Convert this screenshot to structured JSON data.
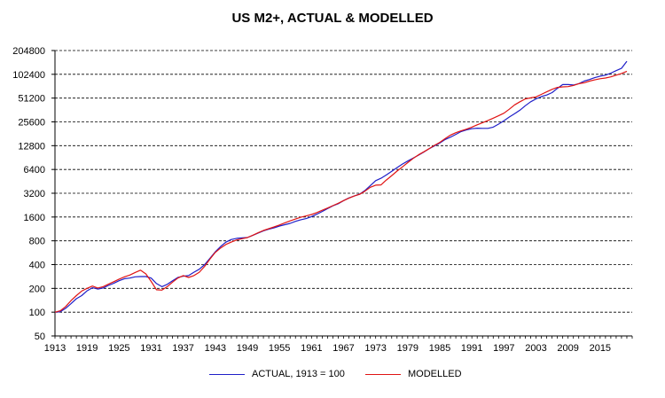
{
  "chart_data": {
    "type": "line",
    "title": "US M2+, ACTUAL & MODELLED",
    "xlabel": "",
    "ylabel": "",
    "y_scale": "log2",
    "ylim": [
      50,
      204800
    ],
    "xlim": [
      1913,
      2021
    ],
    "grid": "horizontal dashed",
    "legend_position": "bottom",
    "y_ticks": [
      {
        "value": 50,
        "label": "50"
      },
      {
        "value": 100,
        "label": "100"
      },
      {
        "value": 200,
        "label": "200"
      },
      {
        "value": 400,
        "label": "400"
      },
      {
        "value": 800,
        "label": "800"
      },
      {
        "value": 1600,
        "label": "1600"
      },
      {
        "value": 3200,
        "label": "3200"
      },
      {
        "value": 6400,
        "label": "6400"
      },
      {
        "value": 12800,
        "label": "12800"
      },
      {
        "value": 25600,
        "label": "25600"
      },
      {
        "value": 51200,
        "label": "51200"
      },
      {
        "value": 102400,
        "label": "102400"
      },
      {
        "value": 204800,
        "label": "204800"
      }
    ],
    "x_ticks": [
      {
        "value": 1913,
        "label": "1913"
      },
      {
        "value": 1919,
        "label": "1919"
      },
      {
        "value": 1925,
        "label": "1925"
      },
      {
        "value": 1931,
        "label": "1931"
      },
      {
        "value": 1937,
        "label": "1937"
      },
      {
        "value": 1943,
        "label": "1943"
      },
      {
        "value": 1949,
        "label": "1949"
      },
      {
        "value": 1955,
        "label": "1955"
      },
      {
        "value": 1961,
        "label": "1961"
      },
      {
        "value": 1967,
        "label": "1967"
      },
      {
        "value": 1973,
        "label": "1973"
      },
      {
        "value": 1979,
        "label": "1979"
      },
      {
        "value": 1985,
        "label": "1985"
      },
      {
        "value": 1991,
        "label": "1991"
      },
      {
        "value": 1997,
        "label": "1997"
      },
      {
        "value": 2003,
        "label": "2003"
      },
      {
        "value": 2009,
        "label": "2009"
      },
      {
        "value": 2015,
        "label": "2015"
      }
    ],
    "series": [
      {
        "name": "ACTUAL, 1913 = 100",
        "color": "#1f1fc8",
        "x": [
          1913,
          1914,
          1915,
          1916,
          1917,
          1918,
          1919,
          1920,
          1921,
          1922,
          1923,
          1924,
          1925,
          1926,
          1927,
          1928,
          1929,
          1930,
          1931,
          1932,
          1933,
          1934,
          1935,
          1936,
          1937,
          1938,
          1939,
          1940,
          1941,
          1942,
          1943,
          1944,
          1945,
          1946,
          1947,
          1948,
          1949,
          1950,
          1951,
          1952,
          1953,
          1954,
          1955,
          1956,
          1957,
          1958,
          1959,
          1960,
          1961,
          1962,
          1963,
          1964,
          1965,
          1966,
          1967,
          1968,
          1969,
          1970,
          1971,
          1972,
          1973,
          1974,
          1975,
          1976,
          1977,
          1978,
          1979,
          1980,
          1981,
          1982,
          1983,
          1984,
          1985,
          1986,
          1987,
          1988,
          1989,
          1990,
          1991,
          1992,
          1993,
          1994,
          1995,
          1996,
          1997,
          1998,
          1999,
          2000,
          2001,
          2002,
          2003,
          2004,
          2005,
          2006,
          2007,
          2008,
          2009,
          2010,
          2011,
          2012,
          2013,
          2014,
          2015,
          2016,
          2017,
          2018,
          2019,
          2020
        ],
        "y": [
          100,
          101,
          112,
          128,
          148,
          162,
          186,
          204,
          196,
          202,
          218,
          232,
          250,
          265,
          270,
          280,
          282,
          282,
          270,
          230,
          210,
          225,
          250,
          275,
          285,
          290,
          320,
          350,
          400,
          480,
          580,
          680,
          770,
          830,
          860,
          870,
          880,
          935,
          1000,
          1070,
          1120,
          1170,
          1230,
          1280,
          1330,
          1410,
          1480,
          1530,
          1620,
          1740,
          1880,
          2040,
          2220,
          2360,
          2580,
          2790,
          2950,
          3120,
          3470,
          4000,
          4620,
          4950,
          5450,
          6080,
          6750,
          7480,
          8170,
          8900,
          9700,
          10600,
          11700,
          12700,
          13800,
          15300,
          16400,
          17800,
          19300,
          20300,
          21000,
          21300,
          21200,
          21200,
          22000,
          24000,
          26500,
          29500,
          32500,
          36000,
          41000,
          46000,
          50000,
          53500,
          56000,
          60000,
          68000,
          76000,
          76000,
          75000,
          78000,
          84000,
          88000,
          93000,
          97000,
          100000,
          106000,
          114000,
          122000,
          150000
        ]
      },
      {
        "name": "MODELLED",
        "color": "#e01414",
        "x": [
          1913,
          1914,
          1915,
          1916,
          1917,
          1918,
          1919,
          1920,
          1921,
          1922,
          1923,
          1924,
          1925,
          1926,
          1927,
          1928,
          1929,
          1930,
          1931,
          1932,
          1933,
          1934,
          1935,
          1936,
          1937,
          1938,
          1939,
          1940,
          1941,
          1942,
          1943,
          1944,
          1945,
          1946,
          1947,
          1948,
          1949,
          1950,
          1951,
          1952,
          1953,
          1954,
          1955,
          1956,
          1957,
          1958,
          1959,
          1960,
          1961,
          1962,
          1963,
          1964,
          1965,
          1966,
          1967,
          1968,
          1969,
          1970,
          1971,
          1972,
          1973,
          1974,
          1975,
          1976,
          1977,
          1978,
          1979,
          1980,
          1981,
          1982,
          1983,
          1984,
          1985,
          1986,
          1987,
          1988,
          1989,
          1990,
          1991,
          1992,
          1993,
          1994,
          1995,
          1996,
          1997,
          1998,
          1999,
          2000,
          2001,
          2002,
          2003,
          2004,
          2005,
          2006,
          2007,
          2008,
          2009,
          2010,
          2011,
          2012,
          2013,
          2014,
          2015,
          2016,
          2017,
          2018,
          2019,
          2020
        ],
        "y": [
          100,
          104,
          118,
          140,
          162,
          185,
          200,
          214,
          202,
          210,
          226,
          243,
          262,
          280,
          295,
          318,
          340,
          305,
          245,
          192,
          190,
          210,
          240,
          270,
          290,
          275,
          290,
          320,
          380,
          470,
          570,
          650,
          720,
          770,
          820,
          850,
          880,
          940,
          1010,
          1080,
          1140,
          1200,
          1270,
          1350,
          1430,
          1510,
          1590,
          1650,
          1720,
          1820,
          1950,
          2080,
          2230,
          2390,
          2580,
          2770,
          2950,
          3100,
          3400,
          3800,
          4050,
          4080,
          4700,
          5350,
          6100,
          6900,
          7800,
          8800,
          9800,
          10700,
          11700,
          12900,
          14100,
          15700,
          17400,
          18700,
          19700,
          20700,
          22000,
          23500,
          25000,
          26700,
          28500,
          30600,
          33000,
          37000,
          42000,
          46000,
          50000,
          51500,
          53000,
          57000,
          61500,
          66000,
          70000,
          71000,
          71500,
          74000,
          78000,
          80000,
          84000,
          87000,
          90000,
          92000,
          95000,
          100000,
          105000,
          112000
        ]
      }
    ]
  }
}
